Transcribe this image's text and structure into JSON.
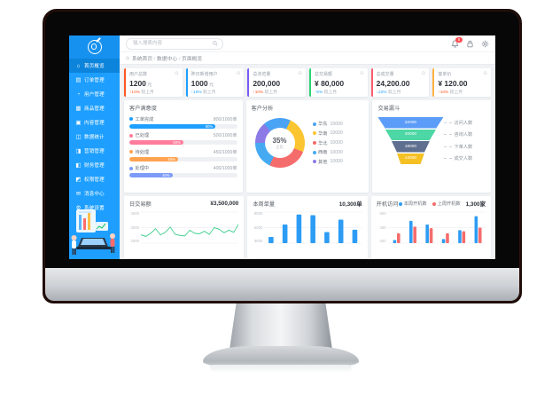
{
  "app": {
    "search": {
      "placeholder": "输入搜索内容"
    },
    "notifications": "5",
    "breadcrumb": {
      "items": [
        "系统首页",
        "数据中心",
        "页面概览"
      ]
    },
    "sidebar": {
      "items": [
        {
          "label": "首页概览",
          "icon": "home-icon",
          "active": true
        },
        {
          "label": "订单管理",
          "icon": "order-icon",
          "active": false
        },
        {
          "label": "用户管理",
          "icon": "user-icon",
          "active": false
        },
        {
          "label": "商品管理",
          "icon": "goods-icon",
          "active": false
        },
        {
          "label": "内容管理",
          "icon": "content-icon",
          "active": false
        },
        {
          "label": "数据统计",
          "icon": "stats-icon",
          "active": false
        },
        {
          "label": "营销管理",
          "icon": "marketing-icon",
          "active": false
        },
        {
          "label": "财务管理",
          "icon": "finance-icon",
          "active": false
        },
        {
          "label": "权限管理",
          "icon": "permission-icon",
          "active": false
        },
        {
          "label": "消息中心",
          "icon": "message-icon",
          "active": false
        },
        {
          "label": "系统设置",
          "icon": "settings-icon",
          "active": false
        }
      ]
    },
    "stat_cards": [
      {
        "label": "用户总数",
        "value": "1200",
        "unit": "元",
        "trend": "↑10%",
        "trend_note": "较上月",
        "accent": "#ff5722",
        "trend_color": "#ff5722"
      },
      {
        "label": "昨日新增用户",
        "value": "1000",
        "unit": "元",
        "trend": "↑10%",
        "trend_note": "较上月",
        "accent": "#1e9fff",
        "trend_color": "#1e9fff"
      },
      {
        "label": "总浏览量",
        "value": "200,000",
        "unit": "",
        "trend": "↑10%",
        "trend_note": "较上月",
        "accent": "#7a5cf5",
        "trend_color": "#ff5722"
      },
      {
        "label": "总交易额",
        "value": "¥ 80,000",
        "unit": "",
        "trend": "↑5%",
        "trend_note": "较上月",
        "accent": "#2ed573",
        "trend_color": "#1e9fff"
      },
      {
        "label": "总成交量",
        "value": "24,200.00",
        "unit": "",
        "trend": "↓22%",
        "trend_note": "较上月",
        "accent": "#ff5b6e",
        "trend_color": "#1e9fff"
      },
      {
        "label": "客单价",
        "value": "¥ 120.00",
        "unit": "",
        "trend": "↑10%",
        "trend_note": "较上月",
        "accent": "#ffb142",
        "trend_color": "#ff5722"
      }
    ]
  },
  "chart_data": [
    {
      "type": "bar",
      "variant": "progress-list",
      "title": "客户满意度",
      "rows": [
        {
          "label": "工单完成",
          "value_text": "800/1000单",
          "percent": 80,
          "pct_label": "80%",
          "color": "#1e9fff"
        },
        {
          "label": "已处理",
          "value_text": "500/1000单",
          "percent": 50,
          "pct_label": "50%",
          "color": "#ff7c9c"
        },
        {
          "label": "待处理",
          "value_text": "450/1000单",
          "percent": 45,
          "pct_label": "45%",
          "color": "#ffa351"
        },
        {
          "label": "处理中",
          "value_text": "400/1000单",
          "percent": 40,
          "pct_label": "40%",
          "color": "#7d9bf8"
        }
      ]
    },
    {
      "type": "pie",
      "title": "客户分析",
      "center_value": "35%",
      "center_label": "占比",
      "rotate_from_deg": -40,
      "slices": [
        {
          "label": "华东",
          "value": "10000",
          "percent": 18,
          "color": "#4aa3f5"
        },
        {
          "label": "华南",
          "value": "10000",
          "percent": 24,
          "color": "#fbc531"
        },
        {
          "label": "华北",
          "value": "10000",
          "percent": 26,
          "color": "#f56c6c"
        },
        {
          "label": "西南",
          "value": "10000",
          "percent": 18,
          "color": "#45aaf2"
        },
        {
          "label": "其他",
          "value": "10000",
          "percent": 14,
          "color": "#8c7ae6"
        }
      ],
      "legend_position": "right"
    },
    {
      "type": "funnel",
      "title": "交易漏斗",
      "widths_percent": [
        100,
        78,
        58,
        42,
        30
      ],
      "layers": [
        {
          "value": "22000",
          "label": "访问人数",
          "color": "#5b9cf8"
        },
        {
          "value": "20000",
          "label": "咨询人数",
          "color": "#4cd7a5"
        },
        {
          "value": "18000",
          "label": "下单人数",
          "color": "#5f6f8f"
        },
        {
          "value": "14000",
          "label": "成交人数",
          "color": "#f4c024"
        }
      ]
    },
    {
      "type": "line",
      "title": "日交易额",
      "total": "¥3,500,000",
      "color": "#3ecf8e",
      "y_ticks": [
        "4000",
        "3000",
        "2000"
      ],
      "ylim": [
        1500,
        4500
      ],
      "grid": true,
      "values": [
        2300,
        2150,
        2450,
        2900,
        2300,
        2550,
        3050,
        2350,
        2250,
        2200,
        2750,
        2450,
        2400,
        2650,
        2350,
        3000,
        2850,
        2500,
        2750,
        2550,
        3350
      ]
    },
    {
      "type": "bar",
      "title": "本周单量",
      "total": "10,300单",
      "color": "#2d9cf4",
      "y_ticks": [
        "9000",
        "6000",
        "3000"
      ],
      "ylim": [
        0,
        9000
      ],
      "grid": true,
      "values": [
        1800,
        5400,
        8300,
        8100,
        3200,
        6800,
        3900
      ]
    },
    {
      "type": "bar",
      "variant": "grouped",
      "title": "开机访问",
      "total": "1,300家",
      "y_ticks": [
        "600",
        "400",
        "200"
      ],
      "ylim": [
        0,
        600
      ],
      "grid": true,
      "series": [
        {
          "name": "本周开机数",
          "color": "#2d9cf4",
          "values": [
            60,
            430,
            360,
            80,
            250,
            520
          ]
        },
        {
          "name": "上周开机数",
          "color": "#f56c6c",
          "values": [
            190,
            320,
            290,
            190,
            230,
            300
          ]
        }
      ]
    }
  ]
}
